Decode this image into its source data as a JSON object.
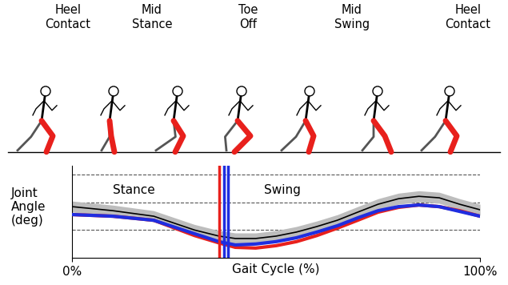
{
  "chart_data": {
    "type": "line",
    "phases": [
      "Heel\nContact",
      "Mid\nStance",
      "Toe\nOff",
      "Mid\nSwing",
      "Heel\nContact"
    ],
    "xlabel": "Gait Cycle (%)",
    "ylabel": "Joint\nAngle\n(deg)",
    "annotations": [
      {
        "text": "Stance",
        "x": 10,
        "y": 36.8
      },
      {
        "text": "Swing",
        "x": 47,
        "y": 36.8
      }
    ],
    "x": [
      0,
      10,
      20,
      30,
      36,
      40,
      45,
      50,
      55,
      60,
      65,
      70,
      75,
      80,
      85,
      90,
      95,
      100
    ],
    "series": [
      {
        "color": "#000000",
        "values": [
          27.7,
          25.5,
          22.5,
          15,
          11.7,
          10.4,
          10.4,
          11.7,
          13.9,
          16.9,
          20.3,
          24.7,
          29,
          32,
          33.3,
          32.5,
          29,
          26
        ],
        "band": {
          "color": "#bdbdbd",
          "lower": [
            24.7,
            22.5,
            19.5,
            12,
            8.7,
            7.4,
            7.4,
            8.7,
            10.9,
            13.9,
            17.3,
            21.7,
            26,
            29,
            30.3,
            29.5,
            26,
            23
          ],
          "upper": [
            30.7,
            28.5,
            25.5,
            18,
            14.7,
            13.4,
            13.4,
            14.7,
            16.9,
            19.9,
            23.3,
            27.7,
            32,
            35,
            36.3,
            35.5,
            32,
            29
          ]
        }
      },
      {
        "color": "#e8201c",
        "values": [
          23.4,
          22.5,
          20.3,
          12,
          8,
          5.6,
          5.2,
          6.5,
          8.7,
          12,
          16,
          20.3,
          24.7,
          27.3,
          28.6,
          27.7,
          25.5,
          22.5
        ]
      },
      {
        "color": "#1f2de0",
        "values": [
          23.4,
          22.5,
          20.3,
          13,
          8.7,
          6.9,
          7.4,
          8.7,
          10.8,
          13.9,
          17.3,
          21.6,
          25.5,
          27.7,
          28.6,
          27.7,
          25.1,
          22.5
        ]
      }
    ],
    "vlines": [
      {
        "x": 36,
        "color": "#e8201c"
      },
      {
        "x": 37.3,
        "color": "#1f2de0"
      },
      {
        "x": 38.2,
        "color": "#1f2de0"
      }
    ],
    "xlim": [
      0,
      100
    ],
    "xticks": [
      {
        "value": 0,
        "label": "0%"
      },
      {
        "value": 100,
        "label": "100%"
      }
    ],
    "ylim": [
      0,
      50
    ],
    "yticks": [
      15,
      30,
      45
    ],
    "grid": true,
    "tick_labels": "x"
  }
}
